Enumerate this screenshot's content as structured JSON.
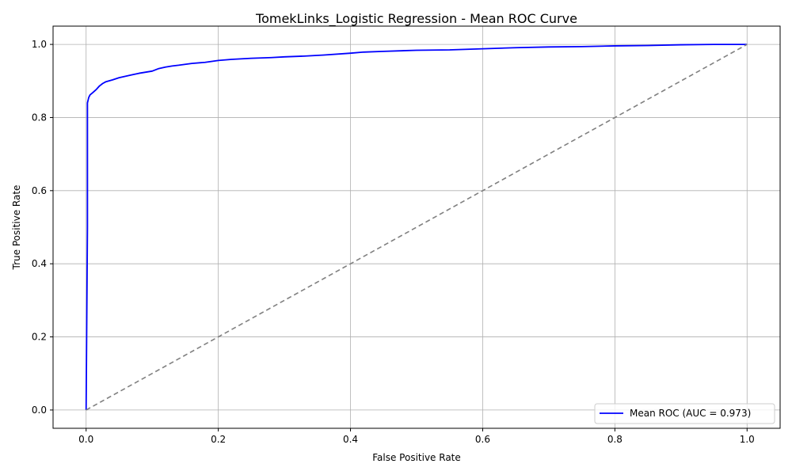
{
  "chart_data": {
    "type": "line",
    "title": "TomekLinks_Logistic Regression - Mean ROC Curve",
    "xlabel": "False Positive Rate",
    "ylabel": "True Positive Rate",
    "xlim": [
      -0.05,
      1.05
    ],
    "ylim": [
      -0.05,
      1.05
    ],
    "xticks": [
      "0.0",
      "0.2",
      "0.4",
      "0.6",
      "0.8",
      "1.0"
    ],
    "yticks": [
      "0.0",
      "0.2",
      "0.4",
      "0.6",
      "0.8",
      "1.0"
    ],
    "grid": true,
    "legend_position": "lower-right",
    "series": [
      {
        "name": "Mean ROC (AUC = 0.973)",
        "color": "#0000ff",
        "style": "solid",
        "points": [
          [
            0.0,
            0.0
          ],
          [
            0.002,
            0.5
          ],
          [
            0.002,
            0.84
          ],
          [
            0.004,
            0.855
          ],
          [
            0.006,
            0.862
          ],
          [
            0.01,
            0.868
          ],
          [
            0.015,
            0.876
          ],
          [
            0.02,
            0.886
          ],
          [
            0.025,
            0.893
          ],
          [
            0.03,
            0.898
          ],
          [
            0.04,
            0.903
          ],
          [
            0.05,
            0.909
          ],
          [
            0.06,
            0.913
          ],
          [
            0.07,
            0.917
          ],
          [
            0.08,
            0.921
          ],
          [
            0.09,
            0.924
          ],
          [
            0.1,
            0.927
          ],
          [
            0.11,
            0.934
          ],
          [
            0.12,
            0.938
          ],
          [
            0.13,
            0.941
          ],
          [
            0.14,
            0.943
          ],
          [
            0.16,
            0.948
          ],
          [
            0.18,
            0.951
          ],
          [
            0.2,
            0.956
          ],
          [
            0.22,
            0.959
          ],
          [
            0.25,
            0.962
          ],
          [
            0.28,
            0.964
          ],
          [
            0.3,
            0.966
          ],
          [
            0.33,
            0.968
          ],
          [
            0.36,
            0.971
          ],
          [
            0.4,
            0.976
          ],
          [
            0.42,
            0.979
          ],
          [
            0.45,
            0.981
          ],
          [
            0.5,
            0.984
          ],
          [
            0.55,
            0.985
          ],
          [
            0.6,
            0.988
          ],
          [
            0.65,
            0.991
          ],
          [
            0.7,
            0.993
          ],
          [
            0.75,
            0.994
          ],
          [
            0.8,
            0.996
          ],
          [
            0.85,
            0.997
          ],
          [
            0.9,
            0.999
          ],
          [
            0.95,
            1.0
          ],
          [
            1.0,
            1.0
          ]
        ]
      },
      {
        "name": "",
        "color": "#808080",
        "style": "dashed",
        "points": [
          [
            0.0,
            0.0
          ],
          [
            1.0,
            1.0
          ]
        ]
      }
    ]
  }
}
